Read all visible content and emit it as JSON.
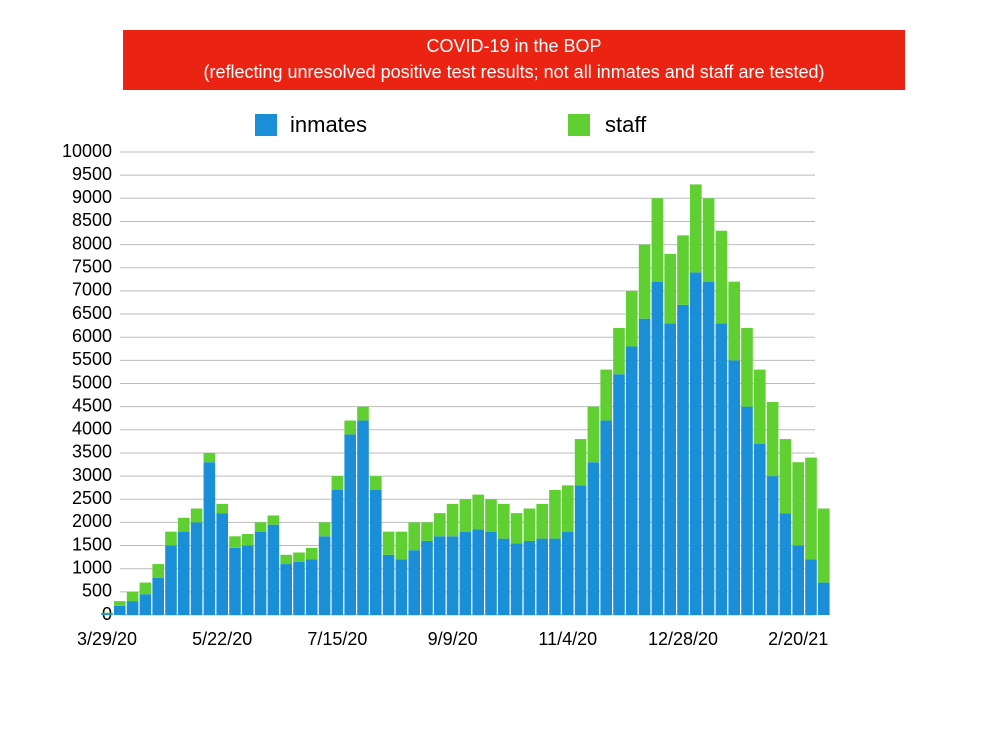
{
  "chart_data": {
    "type": "bar",
    "stacked": true,
    "title": "COVID-19 in the BOP",
    "subtitle": "(reflecting unresolved positive test results; not all inmates and staff are tested)",
    "categories": [
      "3/29/20",
      null,
      null,
      null,
      null,
      null,
      null,
      null,
      null,
      "5/22/20",
      null,
      null,
      null,
      null,
      null,
      null,
      null,
      null,
      "7/15/20",
      null,
      null,
      null,
      null,
      null,
      null,
      null,
      null,
      "9/9/20",
      null,
      null,
      null,
      null,
      null,
      null,
      null,
      null,
      "11/4/20",
      null,
      null,
      null,
      null,
      null,
      null,
      null,
      null,
      "12/28/20",
      null,
      null,
      null,
      null,
      null,
      null,
      null,
      null,
      "2/20/21",
      null,
      null
    ],
    "series": [
      {
        "name": "inmates",
        "color": "#1a8fd8",
        "values": [
          40,
          200,
          300,
          450,
          800,
          1500,
          1800,
          2000,
          3300,
          2200,
          1450,
          1500,
          1800,
          1950,
          1100,
          1150,
          1200,
          1700,
          2700,
          3900,
          4200,
          2700,
          1300,
          1200,
          1400,
          1600,
          1700,
          1700,
          1800,
          1850,
          1800,
          1650,
          1550,
          1600,
          1650,
          1650,
          1800,
          2800,
          3300,
          4200,
          5200,
          5800,
          6400,
          7200,
          6300,
          6700,
          7400,
          7200,
          6300,
          5500,
          4500,
          3700,
          3000,
          2200,
          1500,
          1200,
          700
        ]
      },
      {
        "name": "staff",
        "color": "#5fcf32",
        "values": [
          10,
          100,
          200,
          250,
          300,
          300,
          300,
          300,
          200,
          200,
          250,
          250,
          200,
          200,
          200,
          200,
          250,
          300,
          300,
          300,
          300,
          300,
          500,
          600,
          600,
          400,
          500,
          700,
          700,
          750,
          700,
          750,
          650,
          700,
          750,
          1050,
          1000,
          1000,
          1200,
          1100,
          1000,
          1200,
          1600,
          1800,
          1500,
          1500,
          1900,
          1800,
          2000,
          1700,
          1700,
          1600,
          1600,
          1600,
          1800,
          2200,
          1600
        ]
      }
    ],
    "ylim": [
      0,
      10000
    ],
    "yticks": [
      0,
      500,
      1000,
      1500,
      2000,
      2500,
      3000,
      3500,
      4000,
      4500,
      5000,
      5500,
      6000,
      6500,
      7000,
      7500,
      8000,
      8500,
      9000,
      9500,
      10000
    ],
    "grid": true
  }
}
